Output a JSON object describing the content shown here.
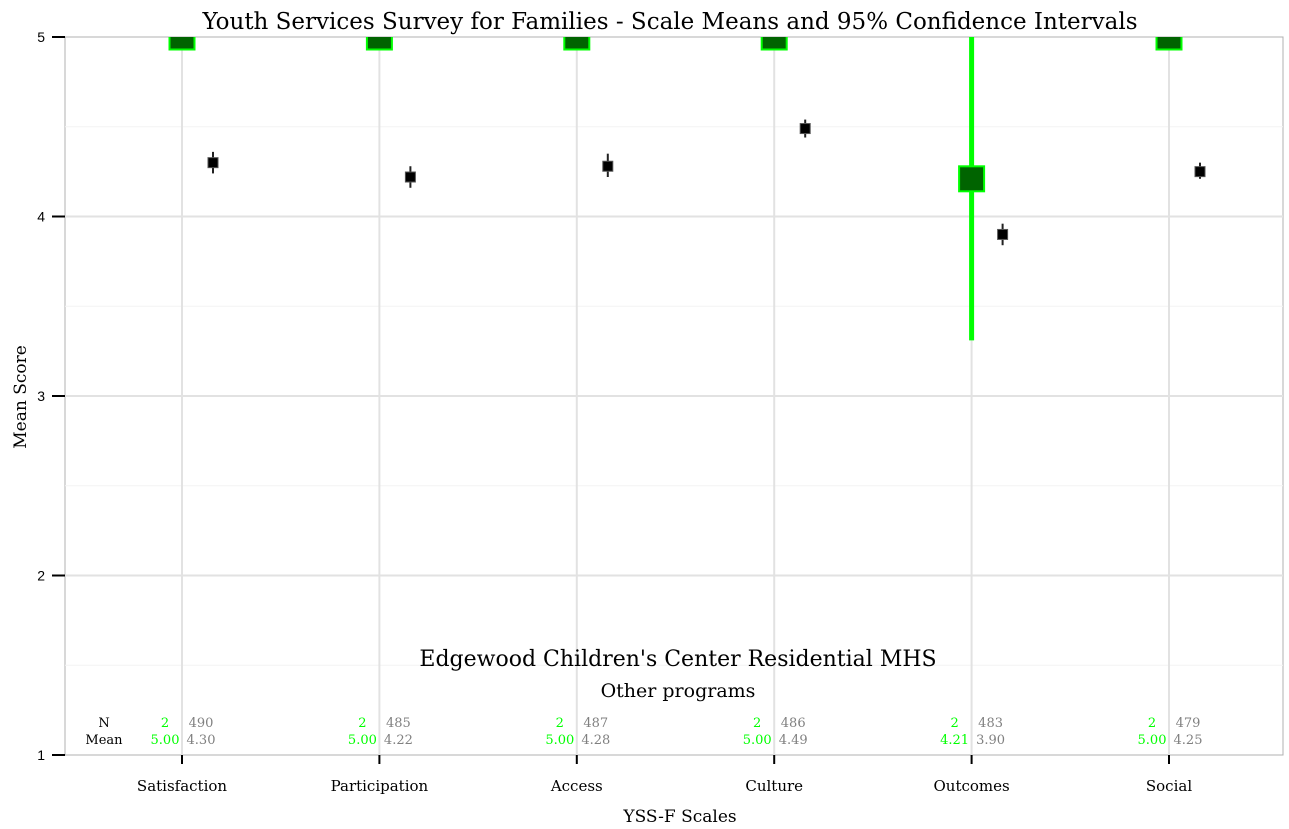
{
  "chart_data": {
    "type": "scatter",
    "title": "Youth Services Survey for Families - Scale Means and 95% Confidence Intervals",
    "xlabel": "YSS-F Scales",
    "ylabel": "Mean Score",
    "ylim": [
      1,
      5
    ],
    "yticks": [
      "1",
      "2",
      "3",
      "4",
      "5"
    ],
    "categories": [
      "Satisfaction",
      "Participation",
      "Access",
      "Culture",
      "Outcomes",
      "Social"
    ],
    "series": [
      {
        "name": "Edgewood Children's Center Residential MHS",
        "color": "#00ff00",
        "fill": "#006400",
        "values": [
          5.0,
          5.0,
          5.0,
          5.0,
          4.21,
          5.0
        ],
        "ci_low": [
          5.0,
          5.0,
          5.0,
          5.0,
          3.31,
          5.0
        ],
        "ci_high": [
          5.0,
          5.0,
          5.0,
          5.0,
          5.0,
          5.0
        ],
        "n": [
          "2",
          "2",
          "2",
          "2",
          "2",
          "2"
        ],
        "mean_labels": [
          "5.00",
          "5.00",
          "5.00",
          "5.00",
          "4.21",
          "5.00"
        ]
      },
      {
        "name": "Other programs",
        "color": "#808080",
        "fill": "#000000",
        "values": [
          4.3,
          4.22,
          4.28,
          4.49,
          3.9,
          4.25
        ],
        "ci_low": [
          4.24,
          4.16,
          4.22,
          4.44,
          3.84,
          4.21
        ],
        "ci_high": [
          4.36,
          4.28,
          4.35,
          4.54,
          3.96,
          4.3
        ],
        "n": [
          "490",
          "485",
          "487",
          "486",
          "483",
          "479"
        ],
        "mean_labels": [
          "4.30",
          "4.22",
          "4.28",
          "4.49",
          "3.90",
          "4.25"
        ]
      }
    ],
    "table_row_labels": {
      "n": "N",
      "mean": "Mean"
    },
    "grid": true,
    "legend": "bottom-center"
  }
}
